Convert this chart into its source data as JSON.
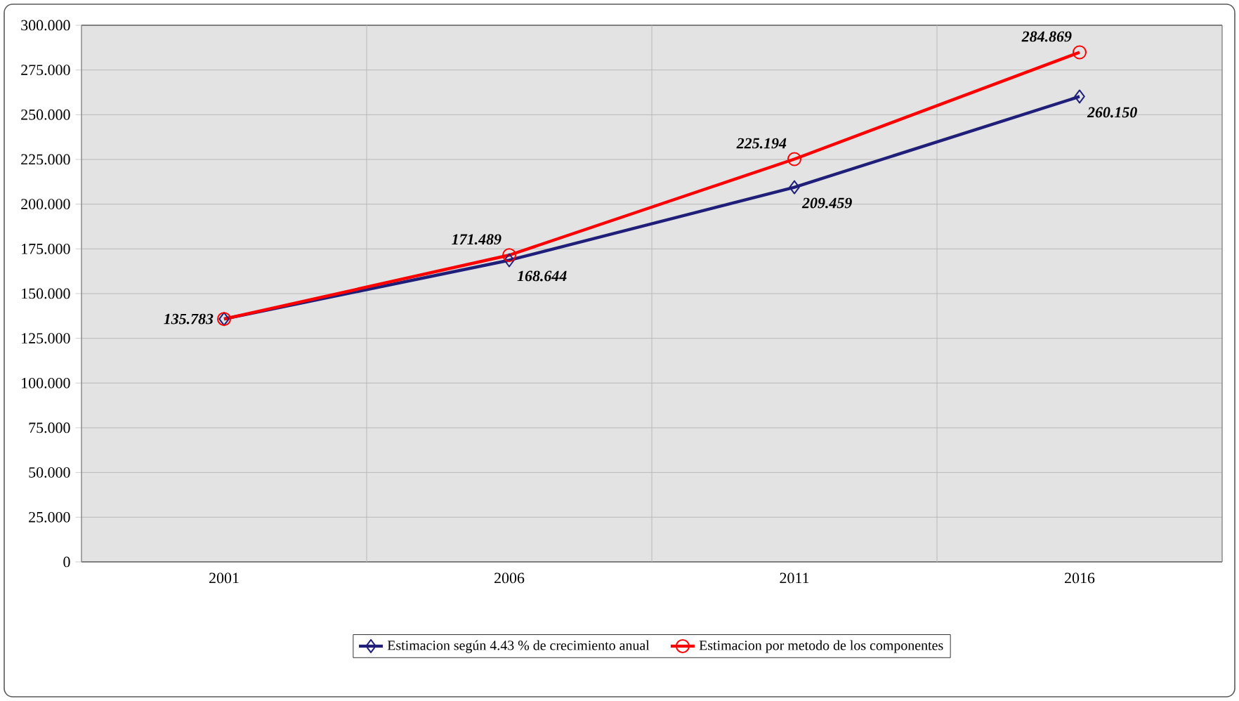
{
  "chart_data": {
    "type": "line",
    "categories": [
      "2001",
      "2006",
      "2011",
      "2016"
    ],
    "series": [
      {
        "name": "Estimacion según 4.43 % de crecimiento anual",
        "color": "#1f1f7a",
        "marker": "diamond",
        "values": [
          135.783,
          168.644,
          209.459,
          260.15
        ],
        "value_labels": [
          "135.783",
          "168.644",
          "209.459",
          "260.150"
        ]
      },
      {
        "name": "Estimacion por metodo de los componentes",
        "color": "#ff0000",
        "marker": "circle",
        "values": [
          135.783,
          171.489,
          225.194,
          284.869
        ],
        "value_labels": [
          null,
          "171.489",
          "225.194",
          "284.869"
        ]
      }
    ],
    "ylim": [
      0,
      300
    ],
    "yticks": [
      0,
      {
        "value": 25,
        "label": "25.000"
      },
      {
        "value": 50,
        "label": "50.000"
      },
      {
        "value": 75,
        "label": "75.000"
      },
      {
        "value": 100,
        "label": "100.000"
      },
      {
        "value": 125,
        "label": "125.000"
      },
      {
        "value": 150,
        "label": "150.000"
      },
      {
        "value": 175,
        "label": "175.000"
      },
      {
        "value": 200,
        "label": "200.000"
      },
      {
        "value": 225,
        "label": "225.000"
      },
      {
        "value": 250,
        "label": "250.000"
      },
      {
        "value": 275,
        "label": "275.000"
      },
      {
        "value": 300,
        "label": "300.000"
      }
    ],
    "grid": true,
    "legend": "bottom",
    "line_style": "solid"
  }
}
